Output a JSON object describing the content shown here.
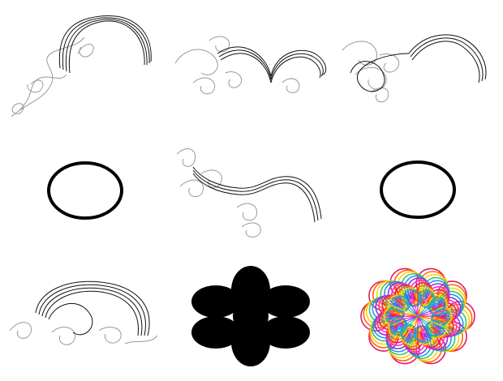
{
  "grid": {
    "cells": [
      {
        "name": "curl-spiral-top-left",
        "kind": "curl"
      },
      {
        "name": "curl-spiral-top-center",
        "kind": "curl"
      },
      {
        "name": "curl-spiral-top-right",
        "kind": "curl"
      },
      {
        "name": "ellipse-outline-left",
        "kind": "ellipse"
      },
      {
        "name": "curl-spiral-middle-center",
        "kind": "curl"
      },
      {
        "name": "ellipse-outline-right",
        "kind": "ellipse"
      },
      {
        "name": "curl-spiral-bottom-left",
        "kind": "curl"
      },
      {
        "name": "black-six-petal-flower",
        "kind": "flower"
      },
      {
        "name": "rainbow-layered-flower",
        "kind": "rainbow-flower"
      }
    ]
  },
  "colors": {
    "background": "#ffffff",
    "stroke_dark": "#111111",
    "stroke_light": "#999999",
    "fill_black": "#000000",
    "rainbow": [
      "#e8176b",
      "#ff6a00",
      "#ffd400",
      "#38c172",
      "#1e9bf0",
      "#7b3fe4",
      "#ff2bd6"
    ]
  }
}
